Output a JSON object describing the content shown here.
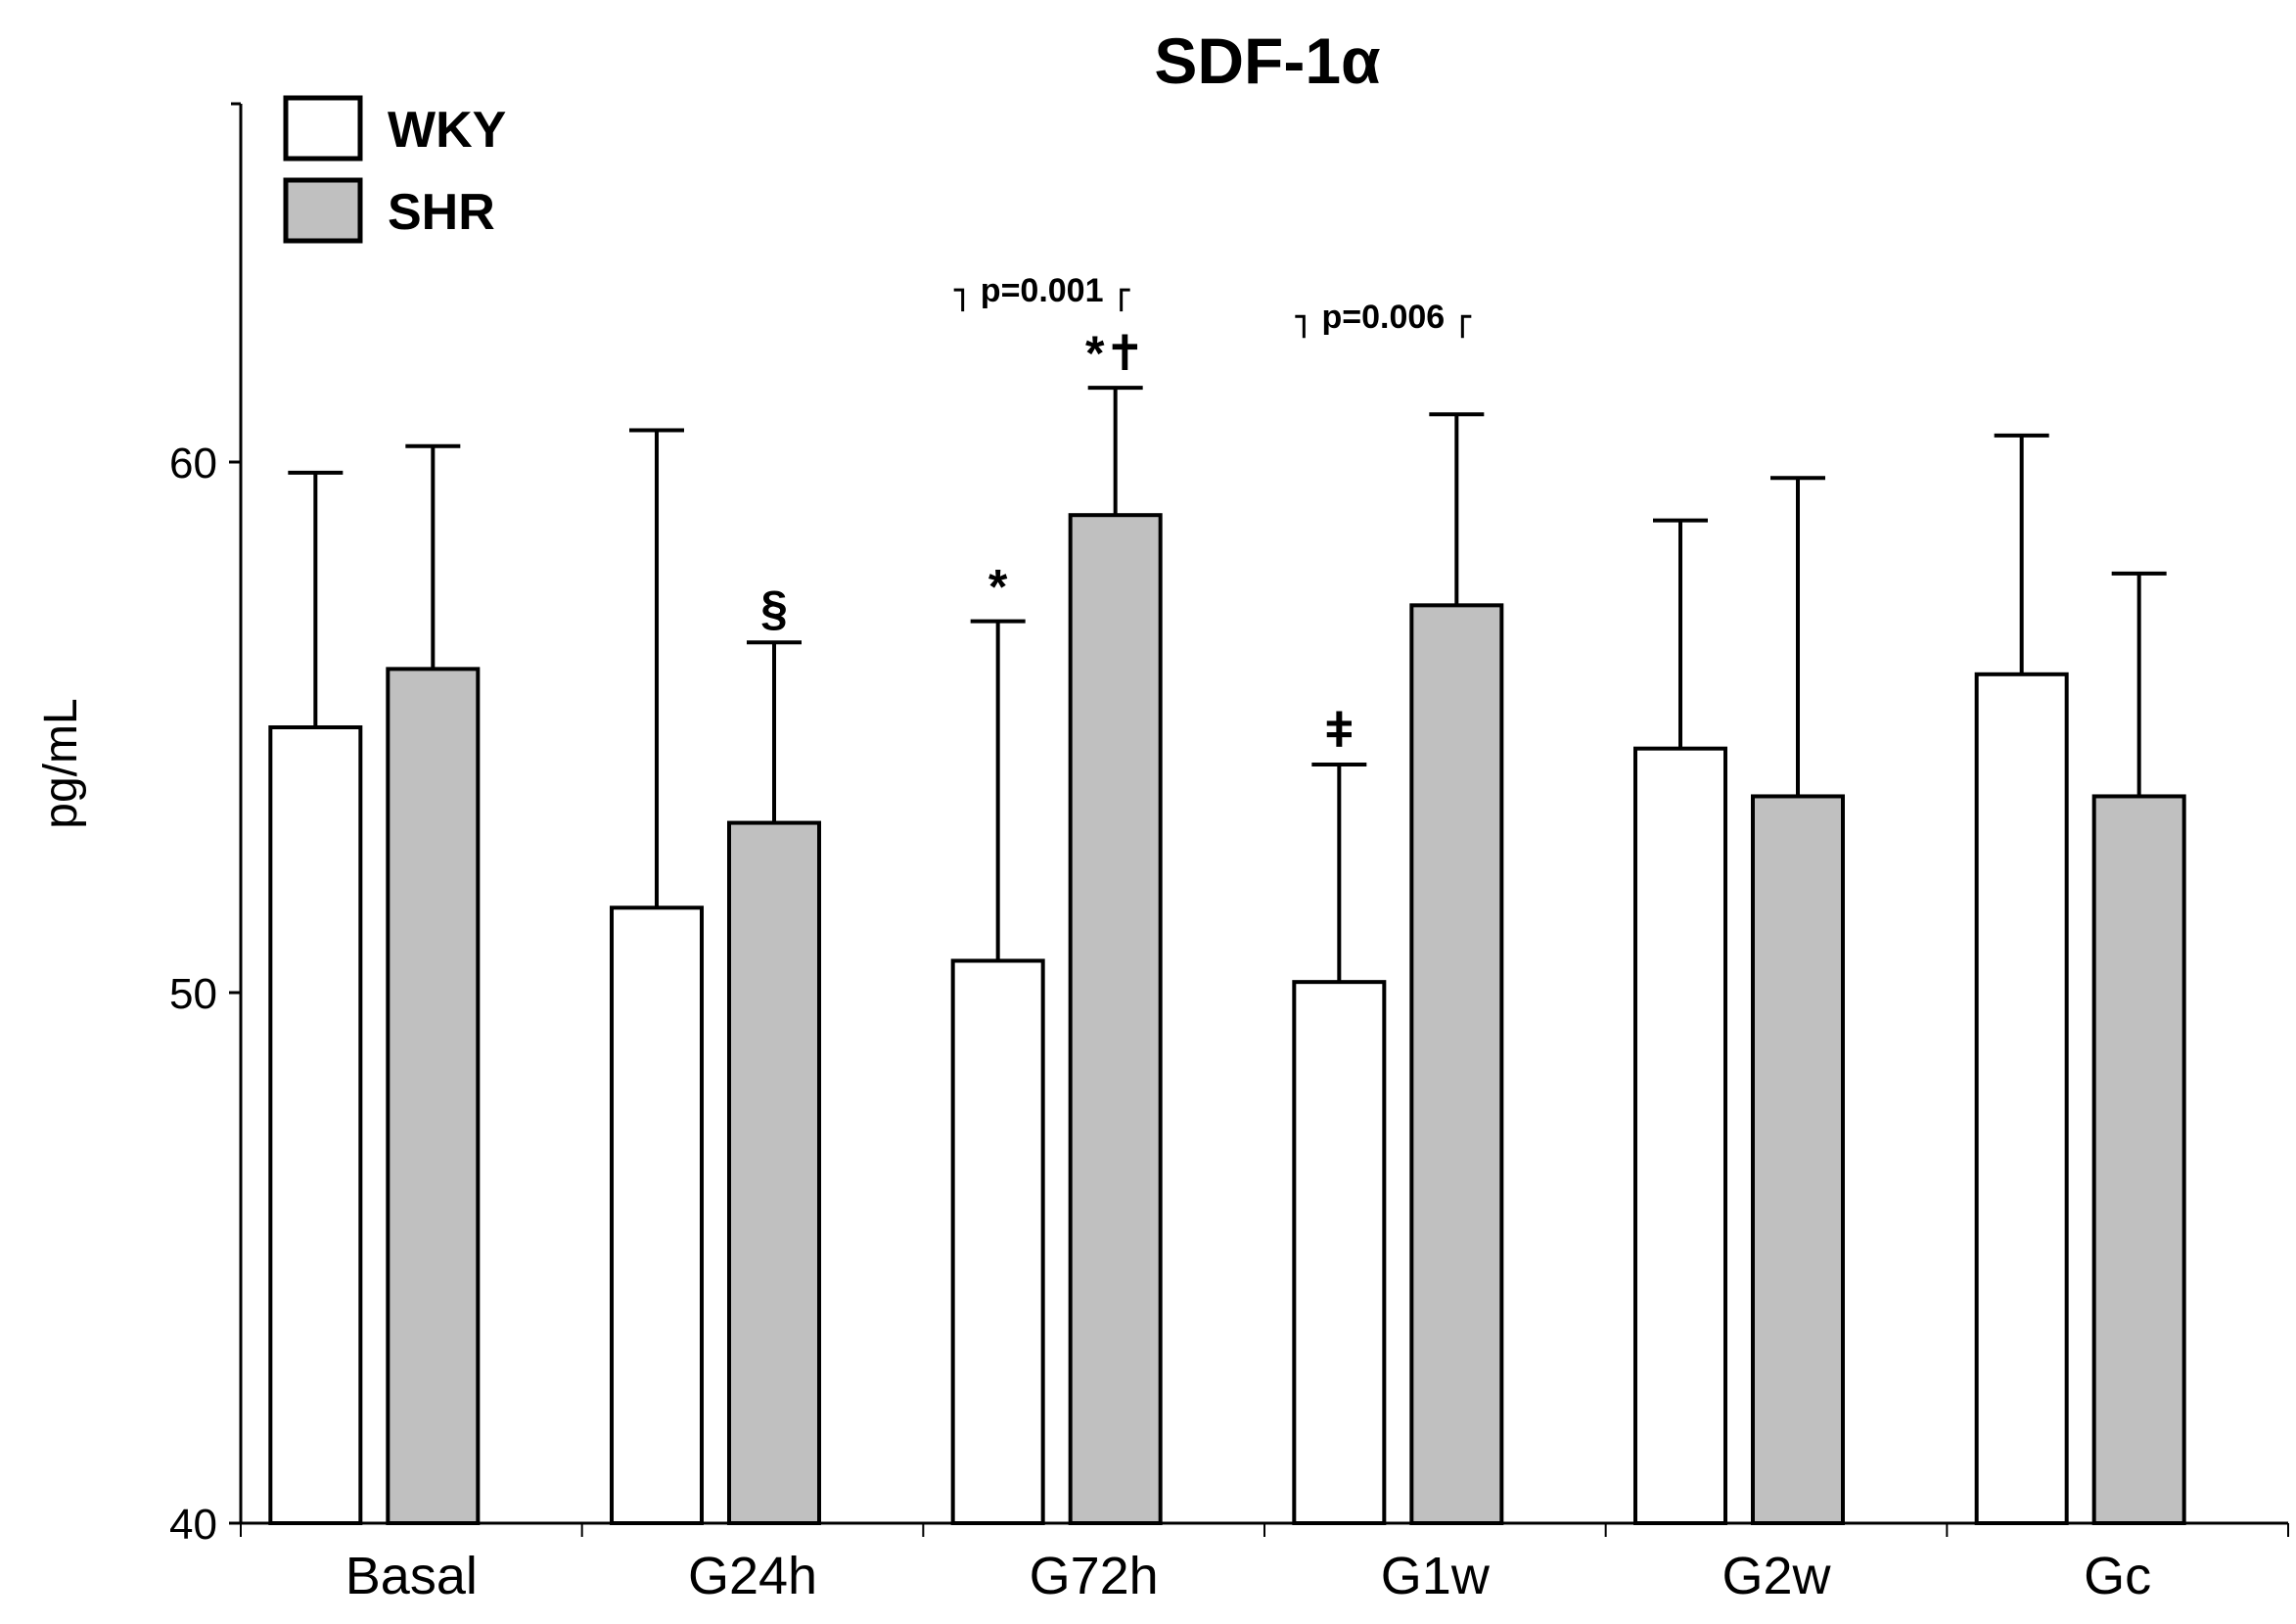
{
  "chart_data": {
    "type": "bar",
    "title": "SDF-1α",
    "xlabel": "",
    "ylabel": "pg/mL",
    "ylim": [
      40,
      67
    ],
    "yticks": [
      40,
      50,
      60
    ],
    "grid": false,
    "legend_position": "top-left",
    "categories": [
      "Basal",
      "G24h",
      "G72h",
      "G1w",
      "G2w",
      "Gc"
    ],
    "series": [
      {
        "name": "WKY",
        "color": "#ffffff",
        "values": [
          55.0,
          51.6,
          50.6,
          50.2,
          54.6,
          56.0
        ],
        "error": [
          4.8,
          9.0,
          6.4,
          4.1,
          4.3,
          4.5
        ],
        "markers": [
          "",
          "",
          "*",
          "ǂ",
          "",
          ""
        ]
      },
      {
        "name": "SHR",
        "color": "#c0c0c0",
        "values": [
          56.1,
          53.2,
          59.0,
          57.3,
          53.7,
          53.7
        ],
        "error": [
          4.2,
          3.4,
          2.4,
          3.6,
          6.0,
          4.2
        ],
        "markers": [
          "",
          "§",
          "*✝",
          "",
          "",
          ""
        ]
      }
    ],
    "annotations": [
      {
        "category": "G72h",
        "text": "p=0.001"
      },
      {
        "category": "G1w",
        "text": "p=0.006"
      }
    ]
  }
}
